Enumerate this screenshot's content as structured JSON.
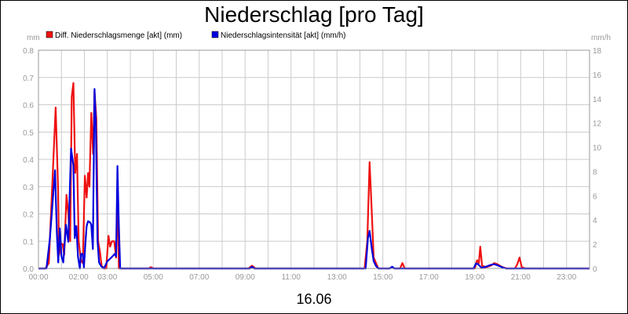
{
  "chart_data": {
    "type": "line",
    "title": "Niederschlag [pro Tag]",
    "date_label": "16.06",
    "y_left_unit": "mm",
    "y_right_unit": "mm/h",
    "ylim_left": [
      0,
      0.8
    ],
    "ylim_right": [
      0,
      18
    ],
    "y_left_ticks": [
      "0.0",
      "0.1",
      "0.2",
      "0.3",
      "0.4",
      "0.5",
      "0.6",
      "0.7",
      "0.8"
    ],
    "y_right_ticks": [
      "0",
      "2",
      "4",
      "6",
      "8",
      "10",
      "12",
      "14",
      "16",
      "18"
    ],
    "x_ticks": [
      "00:00",
      "02:00",
      "03:00",
      "05:00",
      "07:00",
      "09:00",
      "11:00",
      "13:00",
      "15:00",
      "17:00",
      "19:00",
      "21:00",
      "23:00"
    ],
    "x_tick_hours": [
      0,
      1.75,
      3,
      5,
      7,
      9,
      11,
      13,
      15,
      17,
      19,
      21,
      23
    ],
    "x_range_hours": [
      0,
      24
    ],
    "grid": true,
    "legend_position": "top-left",
    "colors": {
      "series1": "#ee1111",
      "series2": "#0000dd",
      "grid": "#cccccc",
      "axis": "#999999"
    },
    "series": [
      {
        "name": "Diff. Niederschlagsmenge [akt] (mm)",
        "axis": "left",
        "color": "#ee1111",
        "points": [
          [
            0,
            0
          ],
          [
            0.3,
            0
          ],
          [
            0.45,
            0.02
          ],
          [
            0.6,
            0.3
          ],
          [
            0.75,
            0.59
          ],
          [
            0.85,
            0.3
          ],
          [
            0.9,
            0.05
          ],
          [
            0.97,
            0.09
          ],
          [
            1.05,
            0.09
          ],
          [
            1.12,
            0.05
          ],
          [
            1.22,
            0.27
          ],
          [
            1.3,
            0.2
          ],
          [
            1.38,
            0.1
          ],
          [
            1.45,
            0.63
          ],
          [
            1.52,
            0.68
          ],
          [
            1.6,
            0.35
          ],
          [
            1.68,
            0.42
          ],
          [
            1.75,
            0.1
          ],
          [
            1.85,
            0.03
          ],
          [
            1.93,
            0.02
          ],
          [
            2.02,
            0.34
          ],
          [
            2.1,
            0.26
          ],
          [
            2.16,
            0.35
          ],
          [
            2.22,
            0.3
          ],
          [
            2.3,
            0.57
          ],
          [
            2.38,
            0.42
          ],
          [
            2.44,
            0.65
          ],
          [
            2.52,
            0.55
          ],
          [
            2.6,
            0.1
          ],
          [
            2.68,
            0.06
          ],
          [
            2.75,
            0.01
          ],
          [
            2.85,
            0
          ],
          [
            2.95,
            0
          ],
          [
            3.05,
            0.12
          ],
          [
            3.12,
            0.08
          ],
          [
            3.2,
            0.1
          ],
          [
            3.3,
            0.1
          ],
          [
            3.38,
            0.04
          ],
          [
            3.44,
            0.3
          ],
          [
            3.5,
            0.0
          ],
          [
            3.6,
            0
          ],
          [
            4.8,
            0
          ],
          [
            4.9,
            0.005
          ],
          [
            5.0,
            0
          ],
          [
            9.15,
            0
          ],
          [
            9.3,
            0.01
          ],
          [
            9.45,
            0
          ],
          [
            14.2,
            0
          ],
          [
            14.32,
            0.1
          ],
          [
            14.42,
            0.39
          ],
          [
            14.52,
            0.2
          ],
          [
            14.6,
            0.04
          ],
          [
            14.7,
            0.02
          ],
          [
            14.8,
            0
          ],
          [
            15.3,
            0
          ],
          [
            15.4,
            0.005
          ],
          [
            15.5,
            0
          ],
          [
            15.75,
            0
          ],
          [
            15.85,
            0.02
          ],
          [
            15.95,
            0
          ],
          [
            19.0,
            0
          ],
          [
            19.1,
            0.03
          ],
          [
            19.18,
            0.02
          ],
          [
            19.24,
            0.08
          ],
          [
            19.32,
            0.01
          ],
          [
            19.5,
            0.005
          ],
          [
            19.7,
            0.01
          ],
          [
            19.85,
            0.02
          ],
          [
            20.0,
            0.015
          ],
          [
            20.2,
            0.005
          ],
          [
            20.4,
            0
          ],
          [
            20.75,
            0
          ],
          [
            20.85,
            0.015
          ],
          [
            20.95,
            0.04
          ],
          [
            21.05,
            0.005
          ],
          [
            21.2,
            0
          ],
          [
            24,
            0
          ]
        ]
      },
      {
        "name": "Niederschlagsintensität [akt] (mm/h)",
        "axis": "right",
        "color": "#0000dd",
        "points": [
          [
            0,
            0
          ],
          [
            0.35,
            0
          ],
          [
            0.5,
            2.5
          ],
          [
            0.6,
            5
          ],
          [
            0.72,
            8.1
          ],
          [
            0.8,
            3
          ],
          [
            0.86,
            0.5
          ],
          [
            0.93,
            3.3
          ],
          [
            1.0,
            1
          ],
          [
            1.08,
            0.5
          ],
          [
            1.2,
            3.6
          ],
          [
            1.3,
            2.2
          ],
          [
            1.42,
            9.9
          ],
          [
            1.52,
            8.5
          ],
          [
            1.58,
            2.5
          ],
          [
            1.65,
            3.5
          ],
          [
            1.72,
            1
          ],
          [
            1.8,
            0
          ],
          [
            1.85,
            1.2
          ],
          [
            1.92,
            1.2
          ],
          [
            1.98,
            0.1
          ],
          [
            2.05,
            2.3
          ],
          [
            2.1,
            3.5
          ],
          [
            2.16,
            3.9
          ],
          [
            2.25,
            3.8
          ],
          [
            2.3,
            3.6
          ],
          [
            2.37,
            1.6
          ],
          [
            2.44,
            14.8
          ],
          [
            2.5,
            12
          ],
          [
            2.57,
            2.3
          ],
          [
            2.64,
            0.5
          ],
          [
            2.72,
            0.2
          ],
          [
            2.85,
            0
          ],
          [
            3.0,
            0.6
          ],
          [
            3.12,
            0.8
          ],
          [
            3.22,
            1
          ],
          [
            3.32,
            1.2
          ],
          [
            3.38,
            1
          ],
          [
            3.44,
            8.45
          ],
          [
            3.5,
            3.5
          ],
          [
            3.56,
            0
          ],
          [
            9.2,
            0
          ],
          [
            9.3,
            0.15
          ],
          [
            9.4,
            0
          ],
          [
            14.25,
            0
          ],
          [
            14.35,
            2.5
          ],
          [
            14.42,
            3.1
          ],
          [
            14.52,
            1.6
          ],
          [
            14.6,
            0.6
          ],
          [
            14.7,
            0.2
          ],
          [
            14.8,
            0
          ],
          [
            15.3,
            0
          ],
          [
            15.4,
            0.15
          ],
          [
            15.5,
            0
          ],
          [
            18.95,
            0
          ],
          [
            19.05,
            0.4
          ],
          [
            19.15,
            0.35
          ],
          [
            19.3,
            0.05
          ],
          [
            19.5,
            0.15
          ],
          [
            19.7,
            0.3
          ],
          [
            19.85,
            0.35
          ],
          [
            20.0,
            0.25
          ],
          [
            20.2,
            0.1
          ],
          [
            20.35,
            0
          ],
          [
            24,
            0
          ]
        ]
      }
    ]
  }
}
